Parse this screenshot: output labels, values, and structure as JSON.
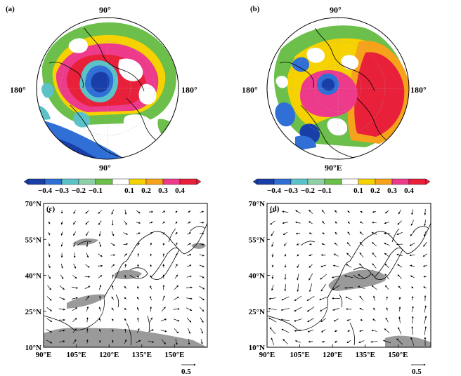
{
  "panels": {
    "a": {
      "label": "(a)",
      "top_label": "90°",
      "left_label": "180°",
      "right_label": "180°",
      "bottom_label": "90°"
    },
    "b": {
      "label": "(b)",
      "top_label": "90°",
      "left_label": "180°",
      "right_label": "180°",
      "bottom_label": "90°E"
    },
    "c": {
      "label": "(c)",
      "lat_ticks": [
        "70°N",
        "55°N",
        "40°N",
        "25°N",
        "10°N"
      ],
      "lon_ticks": [
        "90°E",
        "105°E",
        "120°E",
        "135°E",
        "150°E"
      ],
      "ref_vector": "0.5"
    },
    "d": {
      "label": "(d)",
      "lat_ticks": [
        "70°N",
        "55°N",
        "40°N",
        "25°N",
        "10°N"
      ],
      "lon_ticks": [
        "90°E",
        "105°E",
        "120°E",
        "135°E",
        "150°E"
      ],
      "ref_vector": "0.5"
    }
  },
  "colorbar": {
    "ticks": [
      "−0.4",
      "−0.3",
      "−0.2",
      "−0.1",
      "0.1",
      "0.2",
      "0.3",
      "0.4"
    ],
    "colors": [
      "#1a3ea8",
      "#2f6fd6",
      "#5bc3c8",
      "#8fd0a8",
      "#6bbf4a",
      "#ffffff",
      "#f5d200",
      "#f7a21b",
      "#ee3a8a",
      "#e8203a"
    ]
  },
  "map_colors": {
    "neg_strong": "#1a3ea8",
    "neg_mid": "#2f6fd6",
    "neg_weak": "#5bc3c8",
    "neg_faint": "#6bbf4a",
    "pos_faint": "#f5d200",
    "pos_mid": "#f7a21b",
    "pos_strong": "#ee3a8a",
    "pos_max": "#e8203a",
    "shading": "#9a9a9a"
  }
}
